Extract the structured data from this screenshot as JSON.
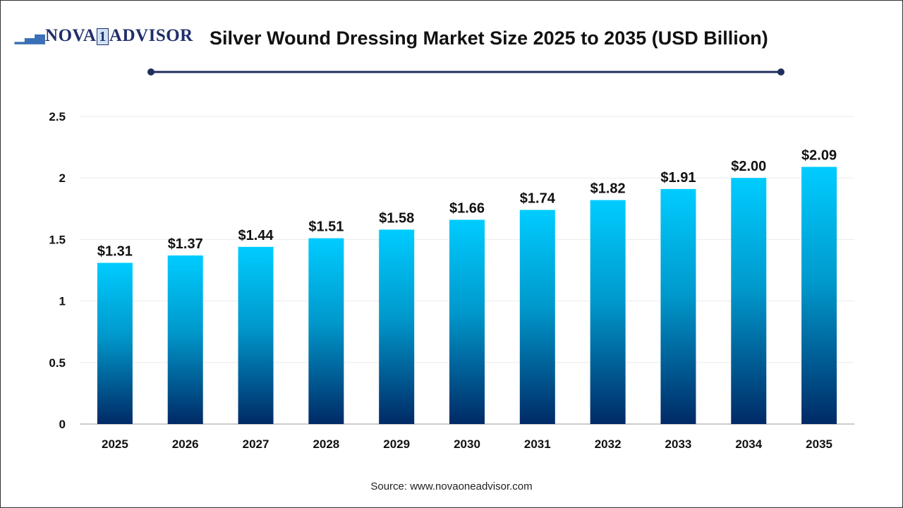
{
  "logo": {
    "text_left": "NOVA",
    "text_one": "1",
    "text_right": "ADVISOR"
  },
  "title": "Silver Wound Dressing Market Size 2025 to 2035 (USD Billion)",
  "source": "Source: www.novaoneadvisor.com",
  "colors": {
    "bar_top": "#00CCFF",
    "bar_bottom": "#002A66",
    "title_rule": "#1f2f5e"
  },
  "chart_data": {
    "type": "bar",
    "title": "Silver Wound Dressing Market Size 2025 to 2035 (USD Billion)",
    "xlabel": "",
    "ylabel": "",
    "categories": [
      "2025",
      "2026",
      "2027",
      "2028",
      "2029",
      "2030",
      "2031",
      "2032",
      "2033",
      "2034",
      "2035"
    ],
    "values": [
      1.31,
      1.37,
      1.44,
      1.51,
      1.58,
      1.66,
      1.74,
      1.82,
      1.91,
      2.0,
      2.09
    ],
    "data_labels": [
      "$1.31",
      "$1.37",
      "$1.44",
      "$1.51",
      "$1.58",
      "$1.66",
      "$1.74",
      "$1.82",
      "$1.91",
      "$2.00",
      "$2.09"
    ],
    "yticks": [
      "0",
      "0.5",
      "1",
      "1.5",
      "2",
      "2.5"
    ],
    "ylim": [
      0,
      2.5
    ],
    "grid": true,
    "legend": "none"
  }
}
